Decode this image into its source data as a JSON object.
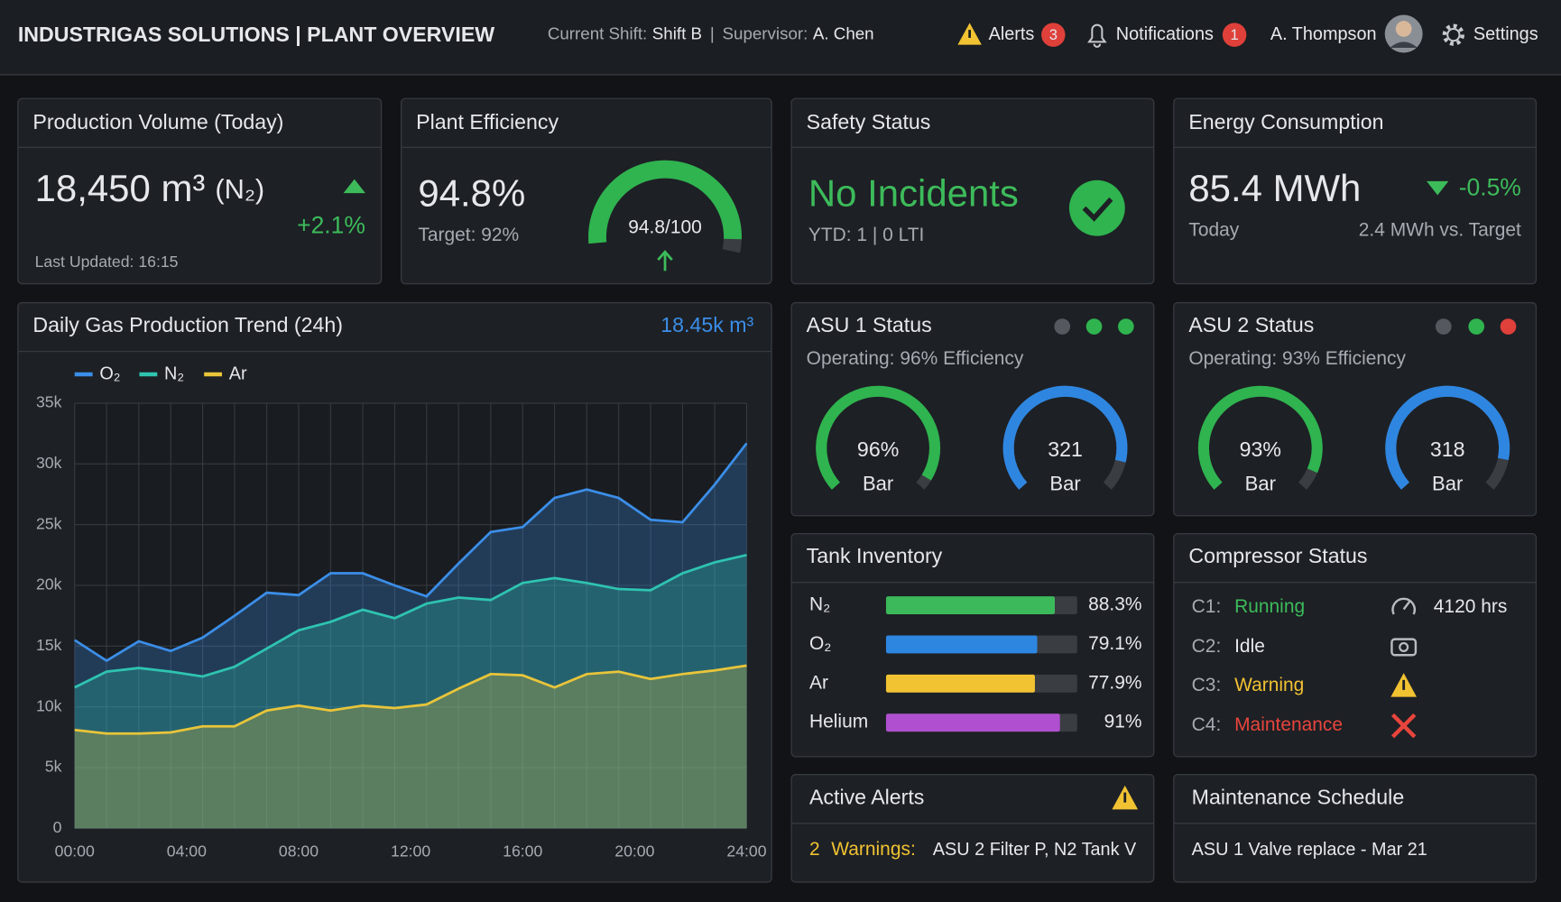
{
  "header": {
    "title": "INDUSTRIGAS SOLUTIONS | PLANT OVERVIEW",
    "shift_label": "Current Shift:",
    "shift": "Shift B",
    "separator": "|",
    "supervisor_label": "Supervisor:",
    "supervisor": "A. Chen",
    "alerts_label": "Alerts",
    "alerts_count": 3,
    "notifications_label": "Notifications",
    "notifications_count": 1,
    "user": "A. Thompson",
    "settings": "Settings"
  },
  "production": {
    "title": "Production Volume (Today)",
    "value": "18,450 m³",
    "gas": "(N₂)",
    "change": "+2.1%",
    "updated": "Last Updated: 16:15"
  },
  "efficiency": {
    "title": "Plant Efficiency",
    "value": "94.8%",
    "target": "Target: 92%",
    "gauge": {
      "value": 94.8,
      "max": 100,
      "label": "94.8/100"
    }
  },
  "safety": {
    "title": "Safety Status",
    "status": "No Incidents",
    "detail": "YTD: 1  |  0 LTI"
  },
  "energy": {
    "title": "Energy Consumption",
    "value": "85.4 MWh",
    "period": "Today",
    "change": "-0.5%",
    "vs_target": "2.4 MWh vs. Target"
  },
  "chart_data": {
    "type": "area",
    "title": "Daily Gas Production Trend (24h)",
    "total": "18.45k m³",
    "x": [
      0,
      1.14,
      2.29,
      3.43,
      4.57,
      5.71,
      6.86,
      8,
      9.14,
      10.29,
      11.43,
      12.57,
      13.71,
      14.86,
      16,
      17.14,
      18.29,
      19.43,
      20.57,
      21.71,
      22.86,
      24
    ],
    "series": [
      {
        "name": "O₂",
        "color": "#3b8ee8",
        "values": [
          15500,
          13800,
          15400,
          14600,
          15700,
          17500,
          19400,
          19200,
          21000,
          21000,
          20000,
          19100,
          21800,
          24400,
          24800,
          27200,
          27900,
          27200,
          25400,
          25200,
          28300,
          31700
        ]
      },
      {
        "name": "N₂",
        "color": "#2ec4b0",
        "values": [
          11600,
          12900,
          13200,
          12900,
          12500,
          13300,
          14800,
          16300,
          17000,
          18000,
          17300,
          18500,
          19000,
          18800,
          20200,
          20600,
          20200,
          19700,
          19600,
          21000,
          21900,
          22500
        ]
      },
      {
        "name": "Ar",
        "color": "#e8c53a",
        "values": [
          8100,
          7800,
          7800,
          7900,
          8400,
          8400,
          9700,
          10100,
          9700,
          10100,
          9900,
          10200,
          11500,
          12700,
          12600,
          11600,
          12700,
          12900,
          12300,
          12700,
          13000,
          13400
        ]
      }
    ],
    "xlim": [
      0,
      24
    ],
    "xticks": [
      {
        "value": 0,
        "label": "00:00"
      },
      {
        "value": 4,
        "label": "04:00"
      },
      {
        "value": 8,
        "label": "08:00"
      },
      {
        "value": 12,
        "label": "12:00"
      },
      {
        "value": 16,
        "label": "16:00"
      },
      {
        "value": 20,
        "label": "20:00"
      },
      {
        "value": 24,
        "label": "24:00"
      }
    ],
    "ylim": [
      0,
      35000
    ],
    "yticks": [
      0,
      {
        "value": 5000,
        "label": "5k"
      },
      {
        "value": 10000,
        "label": "10k"
      },
      {
        "value": 15000,
        "label": "15k"
      },
      {
        "value": 20000,
        "label": "20k"
      },
      {
        "value": 25000,
        "label": "25k"
      },
      {
        "value": 30000,
        "label": "30k"
      },
      {
        "value": 35000,
        "label": "35k"
      }
    ],
    "grid": true
  },
  "asu": [
    {
      "title": "ASU 1 Status",
      "status": "Operating: 96% Efficiency",
      "gauges": [
        {
          "value": 96,
          "max": 100,
          "label": "96%",
          "unit": "Bar"
        },
        {
          "value": 321,
          "max": 360,
          "label": "321",
          "unit": "Bar"
        }
      ]
    },
    {
      "title": "ASU 2 Status",
      "status": "Operating: 93% Efficiency",
      "gauges": [
        {
          "value": 93,
          "max": 100,
          "label": "93%",
          "unit": "Bar"
        },
        {
          "value": 318,
          "max": 360,
          "label": "318",
          "unit": "Bar"
        }
      ]
    }
  ],
  "tanks": {
    "title": "Tank Inventory",
    "xlim": [
      0,
      100
    ],
    "items": [
      {
        "name": "N₂",
        "value": 88.3,
        "value_label": "88.3%",
        "color": "#3cb95a"
      },
      {
        "name": "O₂",
        "value": 79.1,
        "value_label": "79.1%",
        "color": "#2d86e0"
      },
      {
        "name": "Ar",
        "value": 77.9,
        "value_label": "77.9%",
        "color": "#f1c232"
      },
      {
        "name": "Helium",
        "value": 91,
        "value_label": "91%",
        "color": "#b050d0"
      }
    ]
  },
  "compressors": {
    "title": "Compressor Status",
    "items": [
      {
        "id": "C1:",
        "status": "Running",
        "detail": "4120 hrs"
      },
      {
        "id": "C2:",
        "status": "Idle"
      },
      {
        "id": "C3:",
        "status": "Warning"
      },
      {
        "id": "C4:",
        "status": "Maintenance"
      }
    ]
  },
  "alerts_panel": {
    "title": "Active Alerts",
    "count": 2,
    "label": "Warnings:",
    "text": "ASU 2 Filter P, N2 Tank V"
  },
  "maintenance": {
    "title": "Maintenance Schedule",
    "item": "ASU 1 Valve replace - Mar 21"
  }
}
